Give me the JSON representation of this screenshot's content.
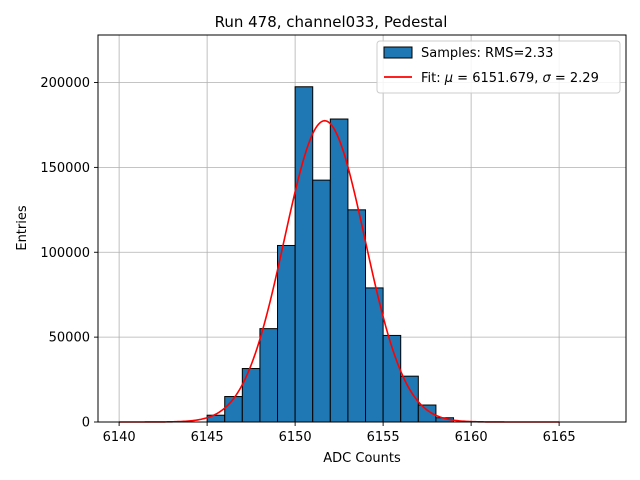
{
  "chart_data": {
    "type": "bar",
    "title": "Run 478, channel033, Pedestal",
    "xlabel": "ADC Counts",
    "ylabel": "Entries",
    "xlim": [
      6138.8,
      6168.8
    ],
    "ylim": [
      0,
      228000
    ],
    "xticks": [
      6140,
      6145,
      6150,
      6155,
      6160,
      6165
    ],
    "yticks": [
      0,
      50000,
      100000,
      150000,
      200000
    ],
    "grid": true,
    "legend_position": "upper-right",
    "histogram": {
      "name": "Samples: RMS=2.33",
      "color": "#1f77b4",
      "edgecolor": "#000000",
      "bin_width": 1,
      "bins": [
        6145,
        6146,
        6147,
        6148,
        6149,
        6150,
        6151,
        6152,
        6153,
        6154,
        6155,
        6156,
        6157,
        6158
      ],
      "counts": [
        4000,
        15000,
        31500,
        55000,
        104000,
        197500,
        142500,
        178500,
        125000,
        79000,
        51000,
        27000,
        10000,
        2500
      ]
    },
    "fit": {
      "name": "Fit: μ = 6151.679, σ = 2.29",
      "legend_parts": [
        "Fit: ",
        "μ",
        " = 6151.679, ",
        "σ",
        " = 2.29"
      ],
      "color": "#ff0000",
      "mu": 6151.679,
      "sigma": 2.29,
      "amplitude": 177500,
      "x_range": [
        6140,
        6165
      ]
    }
  }
}
